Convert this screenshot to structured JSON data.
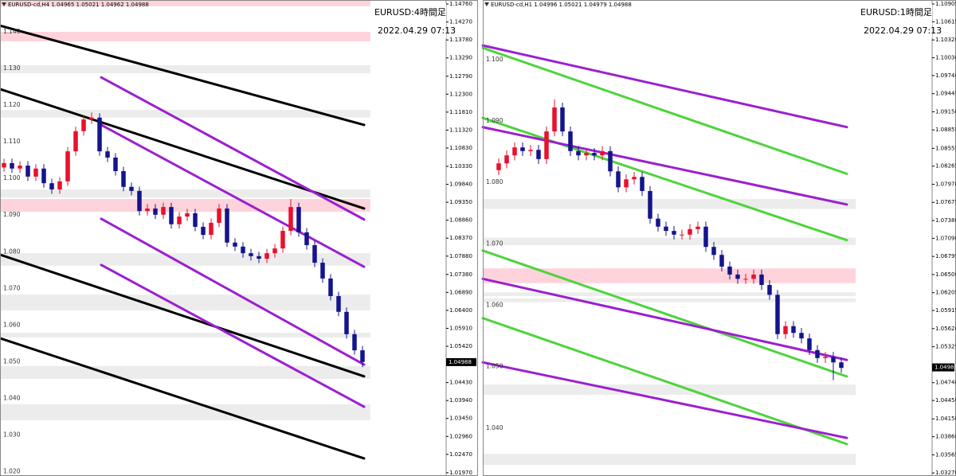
{
  "chart_data": [
    {
      "type": "candlestick",
      "header": "EURUSD-cd,H4 1.04965 1.05021 1.04962 1.04988",
      "title": "EURUSD:4時間足",
      "timestamp": "2022.04.29 07:13",
      "last_price": {
        "value": 1.04988,
        "label": "1.04988"
      },
      "up_color": "#e8112d",
      "down_color": "#14148c",
      "xlim": [
        -0.5,
        55.5
      ],
      "ylim": [
        1.0188,
        1.1487
      ],
      "yticks": [
        {
          "value": 1.1476,
          "label": "1.14760"
        },
        {
          "value": 1.1427,
          "label": "1.14270"
        },
        {
          "value": 1.1378,
          "label": "1.13780"
        },
        {
          "value": 1.1329,
          "label": "1.13290"
        },
        {
          "value": 1.1279,
          "label": "1.12790"
        },
        {
          "value": 1.123,
          "label": "1.12300"
        },
        {
          "value": 1.1181,
          "label": "1.11810"
        },
        {
          "value": 1.1132,
          "label": "1.11320"
        },
        {
          "value": 1.1083,
          "label": "1.10830"
        },
        {
          "value": 1.1033,
          "label": "1.10330"
        },
        {
          "value": 1.0984,
          "label": "1.09840"
        },
        {
          "value": 1.0935,
          "label": "1.09350"
        },
        {
          "value": 1.0886,
          "label": "1.08860"
        },
        {
          "value": 1.0837,
          "label": "1.08370"
        },
        {
          "value": 1.0788,
          "label": "1.07880"
        },
        {
          "value": 1.0738,
          "label": "1.07380"
        },
        {
          "value": 1.0689,
          "label": "1.06890"
        },
        {
          "value": 1.064,
          "label": "1.06400"
        },
        {
          "value": 1.0591,
          "label": "1.05910"
        },
        {
          "value": 1.0542,
          "label": "1.05420"
        },
        {
          "value": 1.0443,
          "label": "1.04430"
        },
        {
          "value": 1.0394,
          "label": "1.03940"
        },
        {
          "value": 1.0345,
          "label": "1.03450"
        },
        {
          "value": 1.0296,
          "label": "1.02960"
        },
        {
          "value": 1.0247,
          "label": "1.02470"
        },
        {
          "value": 1.0197,
          "label": "1.01970"
        }
      ],
      "level_labels": [
        {
          "value": 1.14,
          "label": "1.140"
        },
        {
          "value": 1.13,
          "label": "1.130"
        },
        {
          "value": 1.12,
          "label": "1.120"
        },
        {
          "value": 1.11,
          "label": "1.110"
        },
        {
          "value": 1.1,
          "label": "1.100"
        },
        {
          "value": 1.09,
          "label": "1.090"
        },
        {
          "value": 1.08,
          "label": "1.080"
        },
        {
          "value": 1.07,
          "label": "1.070"
        },
        {
          "value": 1.06,
          "label": "1.060"
        },
        {
          "value": 1.05,
          "label": "1.050"
        },
        {
          "value": 1.04,
          "label": "1.040"
        },
        {
          "value": 1.03,
          "label": "1.030"
        },
        {
          "value": 1.02,
          "label": "1.020"
        }
      ],
      "zones": [
        {
          "from": 1.147,
          "to": 1.1487,
          "color": "#ffd3db"
        },
        {
          "from": 1.1374,
          "to": 1.14,
          "color": "#ffd3db"
        },
        {
          "from": 1.1287,
          "to": 1.1309,
          "color": "#ececec"
        },
        {
          "from": 1.1166,
          "to": 1.1187,
          "color": "#ececec"
        },
        {
          "from": 1.0948,
          "to": 1.097,
          "color": "#ececec"
        },
        {
          "from": 1.0909,
          "to": 1.0944,
          "color": "#ffd3db"
        },
        {
          "from": 1.0762,
          "to": 1.0796,
          "color": "#ececec"
        },
        {
          "from": 1.064,
          "to": 1.0683,
          "color": "#ececec"
        },
        {
          "from": 1.0566,
          "to": 1.0579,
          "color": "#ececec"
        },
        {
          "from": 1.0453,
          "to": 1.0488,
          "color": "#ececec"
        },
        {
          "from": 1.034,
          "to": 1.0384,
          "color": "#ececec"
        }
      ],
      "lines": [
        {
          "color": "#000000",
          "x": [
            -0.5,
            45.2
          ],
          "y": [
            1.1417,
            1.1146
          ]
        },
        {
          "color": "#000000",
          "x": [
            -0.5,
            45.2
          ],
          "y": [
            1.1244,
            1.0918
          ]
        },
        {
          "color": "#000000",
          "x": [
            -0.5,
            45.2
          ],
          "y": [
            1.0792,
            1.046
          ]
        },
        {
          "color": "#000000",
          "x": [
            -0.5,
            45.2
          ],
          "y": [
            1.0564,
            1.0236
          ]
        },
        {
          "color": "#9b1fd1",
          "x": [
            12.2,
            45.2
          ],
          "y": [
            1.1276,
            1.0888
          ]
        },
        {
          "color": "#9b1fd1",
          "x": [
            12.2,
            45.2
          ],
          "y": [
            1.1146,
            1.0759
          ]
        },
        {
          "color": "#9b1fd1",
          "x": [
            12.2,
            45.2
          ],
          "y": [
            1.089,
            1.0492
          ]
        },
        {
          "color": "#9b1fd1",
          "x": [
            12.2,
            45.2
          ],
          "y": [
            1.0764,
            1.0377
          ]
        }
      ],
      "open": [
        1.103,
        1.1042,
        1.1027,
        1.1035,
        1.1005,
        1.1027,
        1.0987,
        1.097,
        1.0992,
        1.1074,
        1.1129,
        1.1161,
        1.1166,
        1.1074,
        1.1057,
        1.102,
        1.0977,
        1.0966,
        1.0911,
        1.0918,
        1.0901,
        1.0922,
        1.0875,
        1.0896,
        1.0905,
        1.0868,
        1.0846,
        1.0879,
        1.0918,
        1.0825,
        1.0814,
        1.0796,
        1.0788,
        1.0781,
        1.0796,
        1.0809,
        1.0857,
        1.0922,
        1.0853,
        1.0818,
        1.077,
        1.0727,
        1.0679,
        1.0636,
        1.0575,
        1.0531
      ],
      "high": [
        1.1054,
        1.1054,
        1.1047,
        1.1047,
        1.1039,
        1.1039,
        1.0999,
        1.1004,
        1.1086,
        1.1141,
        1.1173,
        1.118,
        1.1178,
        1.1086,
        1.1069,
        1.1032,
        1.0989,
        1.0978,
        1.093,
        1.093,
        1.0934,
        1.0934,
        1.0908,
        1.0917,
        1.0917,
        1.088,
        1.0891,
        1.093,
        1.093,
        1.0837,
        1.0826,
        1.0808,
        1.08,
        1.0808,
        1.0821,
        1.0869,
        1.0944,
        1.0934,
        1.0865,
        1.083,
        1.0782,
        1.0739,
        1.0691,
        1.0648,
        1.0587,
        1.0543
      ],
      "low": [
        1.1018,
        1.1015,
        1.1015,
        1.0993,
        1.0993,
        1.0975,
        1.0958,
        1.0958,
        1.098,
        1.1062,
        1.1117,
        1.1149,
        1.1062,
        1.1045,
        1.1008,
        1.0965,
        1.0954,
        1.0899,
        1.0899,
        1.0889,
        1.0889,
        1.0863,
        1.0863,
        1.0884,
        1.0856,
        1.0834,
        1.0834,
        1.0867,
        1.0813,
        1.0802,
        1.0784,
        1.0776,
        1.0769,
        1.0769,
        1.0784,
        1.0797,
        1.0845,
        1.0841,
        1.0806,
        1.0758,
        1.0715,
        1.0667,
        1.0624,
        1.0563,
        1.0519,
        1.0485
      ],
      "close": [
        1.1042,
        1.1027,
        1.1035,
        1.1005,
        1.1027,
        1.0987,
        1.097,
        1.0992,
        1.1074,
        1.1129,
        1.1161,
        1.1166,
        1.1074,
        1.1057,
        1.102,
        1.0977,
        1.0966,
        1.0911,
        1.0918,
        1.0901,
        1.0922,
        1.0875,
        1.0896,
        1.0905,
        1.0868,
        1.0846,
        1.0879,
        1.0918,
        1.0825,
        1.0814,
        1.0796,
        1.0788,
        1.0781,
        1.0796,
        1.0809,
        1.0857,
        1.0922,
        1.0853,
        1.0818,
        1.077,
        1.0727,
        1.0679,
        1.0636,
        1.0575,
        1.0531,
        1.0499
      ]
    },
    {
      "type": "candlestick",
      "header": "EURUSD-cd,H1 1.04996 1.05021 1.04979 1.04988",
      "title": "EURUSD:1時間足",
      "timestamp": "2022.04.29 07:13",
      "last_price": {
        "value": 1.04988,
        "label": "1.04988"
      },
      "up_color": "#e8112d",
      "down_color": "#14148c",
      "xlim": [
        -2,
        54.4
      ],
      "ylim": [
        1.0322,
        1.1097
      ],
      "yticks": [
        {
          "value": 1.10905,
          "label": "1.10905"
        },
        {
          "value": 1.10615,
          "label": "1.10615"
        },
        {
          "value": 1.1032,
          "label": "1.10320"
        },
        {
          "value": 1.1003,
          "label": "1.10030"
        },
        {
          "value": 1.0974,
          "label": "1.09740"
        },
        {
          "value": 1.09445,
          "label": "1.09445"
        },
        {
          "value": 1.0915,
          "label": "1.09150"
        },
        {
          "value": 1.08855,
          "label": "1.08855"
        },
        {
          "value": 1.08555,
          "label": "1.08555"
        },
        {
          "value": 1.08265,
          "label": "1.08265"
        },
        {
          "value": 1.0797,
          "label": "1.07970"
        },
        {
          "value": 1.07675,
          "label": "1.07675"
        },
        {
          "value": 1.0738,
          "label": "1.07380"
        },
        {
          "value": 1.0709,
          "label": "1.07090"
        },
        {
          "value": 1.06795,
          "label": "1.06795"
        },
        {
          "value": 1.065,
          "label": "1.06500"
        },
        {
          "value": 1.06205,
          "label": "1.06205"
        },
        {
          "value": 1.05915,
          "label": "1.05915"
        },
        {
          "value": 1.0562,
          "label": "1.05620"
        },
        {
          "value": 1.05325,
          "label": "1.05325"
        },
        {
          "value": 1.0474,
          "label": "1.04740"
        },
        {
          "value": 1.0445,
          "label": "1.04450"
        },
        {
          "value": 1.0415,
          "label": "1.04150"
        },
        {
          "value": 1.0386,
          "label": "1.03860"
        },
        {
          "value": 1.03565,
          "label": "1.03565"
        },
        {
          "value": 1.0327,
          "label": "1.03270"
        }
      ],
      "level_labels": [
        {
          "value": 1.1,
          "label": "1.100"
        },
        {
          "value": 1.09,
          "label": "1.090"
        },
        {
          "value": 1.08,
          "label": "1.080"
        },
        {
          "value": 1.07,
          "label": "1.070"
        },
        {
          "value": 1.06,
          "label": "1.060"
        },
        {
          "value": 1.05,
          "label": "1.050"
        },
        {
          "value": 1.04,
          "label": "1.040"
        }
      ],
      "zones": [
        {
          "from": 1.0757,
          "to": 1.0773,
          "color": "#ececec"
        },
        {
          "from": 1.0698,
          "to": 1.071,
          "color": "#ececec"
        },
        {
          "from": 1.0636,
          "to": 1.066,
          "color": "#ffd3db"
        },
        {
          "from": 1.0615,
          "to": 1.0621,
          "color": "#ececec"
        },
        {
          "from": 1.0605,
          "to": 1.0611,
          "color": "#ececec"
        },
        {
          "from": 1.0454,
          "to": 1.0471,
          "color": "#ececec"
        },
        {
          "from": 1.034,
          "to": 1.0358,
          "color": "#ececec"
        }
      ],
      "lines": [
        {
          "color": "#4fd33d",
          "x": [
            -2,
            43.7
          ],
          "y": [
            1.1019,
            1.0814
          ]
        },
        {
          "color": "#4fd33d",
          "x": [
            -2,
            43.7
          ],
          "y": [
            1.0905,
            1.0706
          ]
        },
        {
          "color": "#4fd33d",
          "x": [
            -2,
            43.7
          ],
          "y": [
            1.0689,
            1.0484
          ]
        },
        {
          "color": "#4fd33d",
          "x": [
            -2,
            43.7
          ],
          "y": [
            1.0579,
            1.0374
          ]
        },
        {
          "color": "#9b1fd1",
          "x": [
            -2,
            43.7
          ],
          "y": [
            1.1023,
            1.089
          ]
        },
        {
          "color": "#9b1fd1",
          "x": [
            -2,
            43.7
          ],
          "y": [
            1.089,
            1.0764
          ]
        },
        {
          "color": "#9b1fd1",
          "x": [
            -2,
            43.7
          ],
          "y": [
            1.0643,
            1.0511
          ]
        },
        {
          "color": "#9b1fd1",
          "x": [
            -2,
            43.7
          ],
          "y": [
            1.0507,
            1.0384
          ]
        }
      ],
      "open": [
        1.082,
        1.0831,
        1.0844,
        1.0857,
        1.0851,
        1.0853,
        1.0838,
        1.0883,
        1.0922,
        1.0883,
        1.0851,
        1.0844,
        1.0848,
        1.0844,
        1.0851,
        1.0818,
        1.0792,
        1.0805,
        1.0809,
        1.0786,
        1.0741,
        1.0728,
        1.0721,
        1.0715,
        1.0715,
        1.0724,
        1.0728,
        1.0695,
        1.0682,
        1.0663,
        1.065,
        1.0643,
        1.0643,
        1.065,
        1.0633,
        1.0617,
        1.0553,
        1.0566,
        1.0555,
        1.0546,
        1.0527,
        1.0514,
        1.0516,
        1.0507
      ],
      "high": [
        1.0839,
        1.0852,
        1.0865,
        1.0865,
        1.0861,
        1.0861,
        1.0891,
        1.0935,
        1.093,
        1.0891,
        1.0859,
        1.0856,
        1.0856,
        1.0859,
        1.0859,
        1.0826,
        1.0813,
        1.0817,
        1.0817,
        1.0794,
        1.0749,
        1.0736,
        1.0729,
        1.0723,
        1.0732,
        1.0736,
        1.0736,
        1.0703,
        1.069,
        1.0671,
        1.0658,
        1.0651,
        1.0658,
        1.0658,
        1.0641,
        1.0625,
        1.0574,
        1.0574,
        1.0563,
        1.0554,
        1.0535,
        1.0524,
        1.0524,
        1.0515
      ],
      "low": [
        1.0812,
        1.0823,
        1.0836,
        1.0843,
        1.0843,
        1.083,
        1.083,
        1.0875,
        1.0875,
        1.0843,
        1.0836,
        1.0836,
        1.0836,
        1.0836,
        1.081,
        1.0784,
        1.0784,
        1.0797,
        1.0778,
        1.0733,
        1.072,
        1.0713,
        1.0707,
        1.0707,
        1.0707,
        1.0716,
        1.0687,
        1.0674,
        1.0655,
        1.0642,
        1.0635,
        1.0635,
        1.0635,
        1.0625,
        1.0609,
        1.0545,
        1.0545,
        1.0547,
        1.0538,
        1.0519,
        1.0506,
        1.0506,
        1.0478,
        1.049
      ],
      "close": [
        1.0831,
        1.0844,
        1.0857,
        1.0851,
        1.0853,
        1.0838,
        1.0883,
        1.0922,
        1.0883,
        1.0851,
        1.0844,
        1.0848,
        1.0844,
        1.0851,
        1.0818,
        1.0792,
        1.0805,
        1.0809,
        1.0786,
        1.0741,
        1.0728,
        1.0721,
        1.0715,
        1.0715,
        1.0724,
        1.0728,
        1.0695,
        1.0682,
        1.0663,
        1.065,
        1.0643,
        1.0643,
        1.065,
        1.0633,
        1.0617,
        1.0553,
        1.0566,
        1.0555,
        1.0546,
        1.0527,
        1.0514,
        1.0516,
        1.0507,
        1.0498
      ]
    }
  ]
}
